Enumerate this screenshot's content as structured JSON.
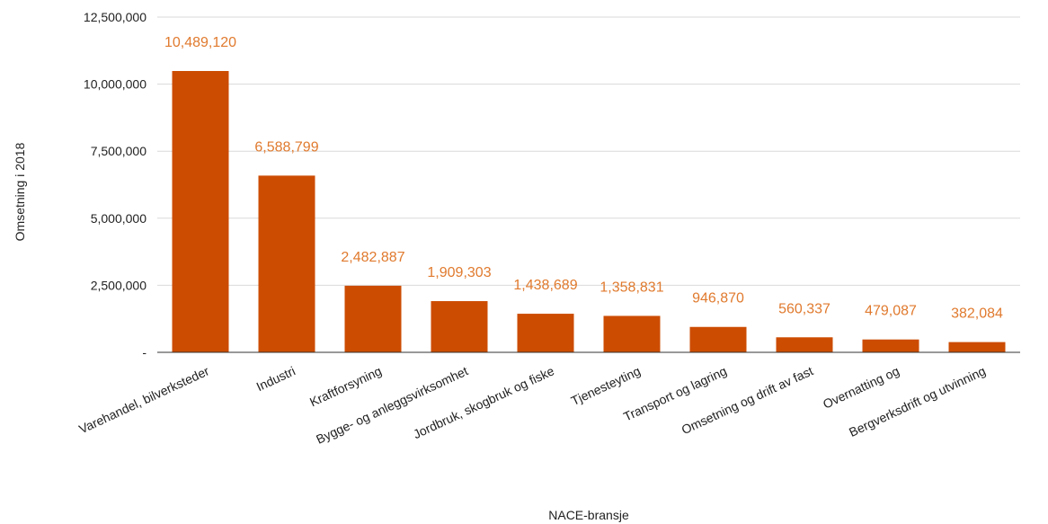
{
  "chart_data": {
    "type": "bar",
    "title": "",
    "xlabel": "NACE-bransje",
    "ylabel": "Omsetning i 2018",
    "ylim": [
      0,
      12500000
    ],
    "y_ticks": [
      0,
      2500000,
      5000000,
      7500000,
      10000000,
      12500000
    ],
    "y_tick_labels": [
      "-",
      "2,500,000",
      "5,000,000",
      "7,500,000",
      "10,000,000",
      "12,500,000"
    ],
    "grid": true,
    "legend": "none",
    "bar_color": "#cc4c02",
    "label_color": "#e07a2e",
    "categories": [
      "Varehandel, bilverksteder",
      "Industri",
      "Kraftforsyning",
      "Bygge- og anleggsvirksomhet",
      "Jordbruk, skogbruk og fiske",
      "Tjenesteyting",
      "Transport og lagring",
      "Omsetning og drift av fast",
      "Overnatting og",
      "Bergverksdrift og utvinning"
    ],
    "values": [
      10489120,
      6588799,
      2482887,
      1909303,
      1438689,
      1358831,
      946870,
      560337,
      479087,
      382084
    ],
    "data_labels": [
      "10,489,120",
      "6,588,799",
      "2,482,887",
      "1,909,303",
      "1,438,689",
      "1,358,831",
      "946,870",
      "560,337",
      "479,087",
      "382,084"
    ]
  }
}
